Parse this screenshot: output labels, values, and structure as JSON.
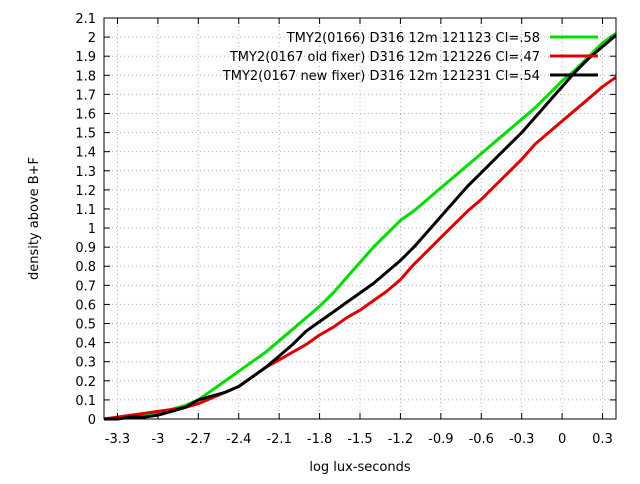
{
  "chart_data": {
    "type": "line",
    "title": "",
    "xlabel": "log lux-seconds",
    "ylabel": "density above B+F",
    "xlim": [
      -3.4,
      0.4
    ],
    "ylim": [
      0,
      2.1
    ],
    "xticks": [
      -3.3,
      -3.0,
      -2.7,
      -2.4,
      -2.1,
      -1.8,
      -1.5,
      -1.2,
      -0.9,
      -0.6,
      -0.3,
      0,
      0.3
    ],
    "xtick_labels": [
      "-3.3",
      "-3",
      "-2.7",
      "-2.4",
      "-2.1",
      "-1.8",
      "-1.5",
      "-1.2",
      "-0.9",
      "-0.6",
      "-0.3",
      "0",
      "0.3"
    ],
    "yticks": [
      0,
      0.1,
      0.2,
      0.3,
      0.4,
      0.5,
      0.6,
      0.7,
      0.8,
      0.9,
      1.0,
      1.1,
      1.2,
      1.3,
      1.4,
      1.5,
      1.6,
      1.7,
      1.8,
      1.9,
      2.0,
      2.1
    ],
    "ytick_labels": [
      "0",
      "0.1",
      "0.2",
      "0.3",
      "0.4",
      "0.5",
      "0.6",
      "0.7",
      "0.8",
      "0.9",
      "1",
      "1.1",
      "1.2",
      "1.3",
      "1.4",
      "1.5",
      "1.6",
      "1.7",
      "1.8",
      "1.9",
      "2",
      "2.1"
    ],
    "grid": true,
    "legend_position": "top-right",
    "series": [
      {
        "name": "TMY2(0166) D316 12m 121123 CI=.58",
        "color": "#00dd00",
        "x": [
          -3.4,
          -3.3,
          -3.2,
          -3.0,
          -2.9,
          -2.8,
          -2.7,
          -2.6,
          -2.5,
          -2.4,
          -2.3,
          -2.2,
          -2.1,
          -2.0,
          -1.9,
          -1.8,
          -1.7,
          -1.6,
          -1.5,
          -1.4,
          -1.3,
          -1.2,
          -1.1,
          -1.0,
          -0.9,
          -0.8,
          -0.7,
          -0.6,
          -0.5,
          -0.4,
          -0.3,
          -0.2,
          -0.1,
          0.0,
          0.1,
          0.2,
          0.3,
          0.4
        ],
        "y": [
          0.0,
          0.0,
          0.01,
          0.03,
          0.05,
          0.07,
          0.1,
          0.15,
          0.2,
          0.25,
          0.3,
          0.35,
          0.41,
          0.47,
          0.53,
          0.59,
          0.66,
          0.74,
          0.82,
          0.9,
          0.97,
          1.04,
          1.09,
          1.15,
          1.21,
          1.27,
          1.33,
          1.39,
          1.45,
          1.51,
          1.57,
          1.63,
          1.7,
          1.77,
          1.83,
          1.9,
          1.97,
          2.02
        ]
      },
      {
        "name": "TMY2(0167 old fixer) D316 12m 121226 CI=.47",
        "color": "#dd0000",
        "x": [
          -3.4,
          -3.3,
          -3.2,
          -3.1,
          -3.0,
          -2.9,
          -2.8,
          -2.7,
          -2.6,
          -2.5,
          -2.4,
          -2.3,
          -2.2,
          -2.1,
          -2.0,
          -1.9,
          -1.8,
          -1.7,
          -1.6,
          -1.5,
          -1.4,
          -1.3,
          -1.2,
          -1.1,
          -1.0,
          -0.9,
          -0.8,
          -0.7,
          -0.6,
          -0.5,
          -0.4,
          -0.3,
          -0.2,
          -0.1,
          0.0,
          0.1,
          0.2,
          0.3,
          0.4
        ],
        "y": [
          0.0,
          0.01,
          0.02,
          0.03,
          0.04,
          0.05,
          0.06,
          0.08,
          0.11,
          0.14,
          0.17,
          0.22,
          0.27,
          0.31,
          0.35,
          0.39,
          0.44,
          0.48,
          0.53,
          0.57,
          0.62,
          0.67,
          0.73,
          0.81,
          0.88,
          0.95,
          1.02,
          1.09,
          1.15,
          1.22,
          1.29,
          1.36,
          1.44,
          1.5,
          1.56,
          1.62,
          1.68,
          1.74,
          1.79
        ]
      },
      {
        "name": "TMY2(0167 new fixer) D316 12m 121231 CI=.54",
        "color": "#000000",
        "x": [
          -3.4,
          -3.3,
          -3.2,
          -3.1,
          -3.0,
          -2.9,
          -2.8,
          -2.7,
          -2.6,
          -2.5,
          -2.4,
          -2.3,
          -2.2,
          -2.1,
          -2.0,
          -1.9,
          -1.8,
          -1.7,
          -1.6,
          -1.5,
          -1.4,
          -1.3,
          -1.2,
          -1.1,
          -1.0,
          -0.9,
          -0.8,
          -0.7,
          -0.6,
          -0.5,
          -0.4,
          -0.3,
          -0.2,
          -0.1,
          0.0,
          0.1,
          0.2,
          0.3,
          0.4
        ],
        "y": [
          0.0,
          0.0,
          0.01,
          0.01,
          0.02,
          0.04,
          0.06,
          0.1,
          0.12,
          0.14,
          0.17,
          0.22,
          0.27,
          0.33,
          0.39,
          0.46,
          0.51,
          0.56,
          0.61,
          0.66,
          0.71,
          0.77,
          0.83,
          0.9,
          0.98,
          1.06,
          1.14,
          1.22,
          1.29,
          1.36,
          1.43,
          1.5,
          1.58,
          1.66,
          1.74,
          1.82,
          1.89,
          1.95,
          2.01
        ]
      }
    ]
  }
}
